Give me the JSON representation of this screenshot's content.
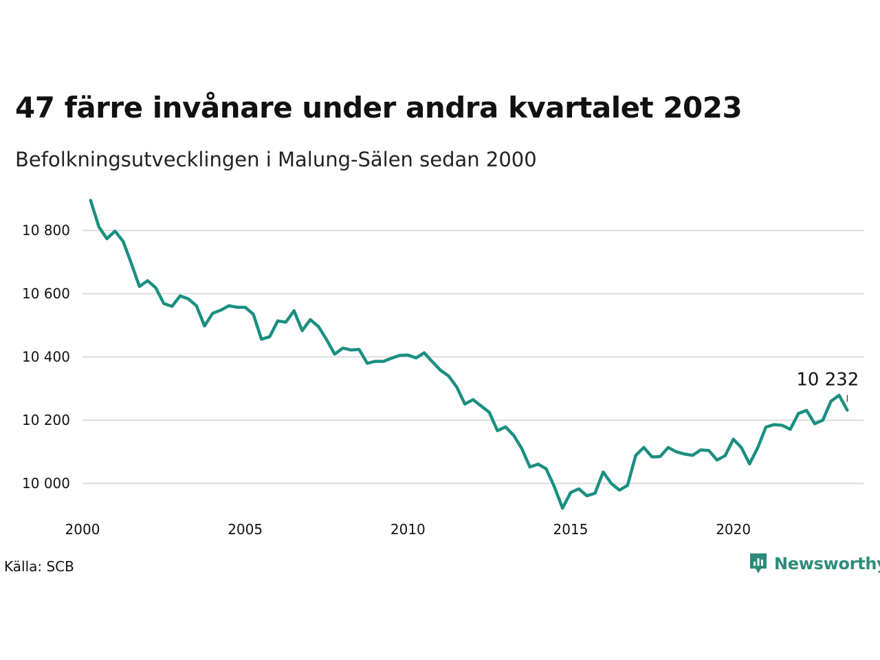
{
  "title": "47 färre invånare under andra kvartalet 2023",
  "subtitle": "Befolkningsutvecklingen i Malung-Sälen sedan 2000",
  "source": "Källa: SCB",
  "brand": {
    "name": "Newsworthy",
    "icon": "newsworthy-logo-icon",
    "color": "#2e8b7a"
  },
  "chart_data": {
    "type": "line",
    "xlabel": "",
    "ylabel": "",
    "ylim": [
      9920,
      10920
    ],
    "xlim": [
      2000.0,
      2024.0
    ],
    "grid": true,
    "line_color": "#1a8f80",
    "yticks": [
      10000,
      10200,
      10400,
      10600,
      10800
    ],
    "ytick_labels": [
      "10 000",
      "10 200",
      "10 400",
      "10 600",
      "10 800"
    ],
    "xticks": [
      2000,
      2005,
      2010,
      2015,
      2020
    ],
    "xtick_labels": [
      "2000",
      "2005",
      "2010",
      "2015",
      "2020"
    ],
    "last_value_label": "10 232",
    "series": [
      {
        "x": [
          2000.25,
          2000.5,
          2000.75,
          2001.0,
          2001.25,
          2001.5,
          2001.75,
          2002.0,
          2002.25,
          2002.5,
          2002.75,
          2003.0,
          2003.25,
          2003.5,
          2003.75,
          2004.0,
          2004.25,
          2004.5,
          2004.75,
          2005.0,
          2005.25,
          2005.5,
          2005.75,
          2006.0,
          2006.25,
          2006.5,
          2006.75,
          2007.0,
          2007.25,
          2007.5,
          2007.75,
          2008.0,
          2008.25,
          2008.5,
          2008.75,
          2009.0,
          2009.25,
          2009.5,
          2009.75,
          2010.0,
          2010.25,
          2010.5,
          2010.75,
          2011.0,
          2011.25,
          2011.5,
          2011.75,
          2012.0,
          2012.25,
          2012.5,
          2012.75,
          2013.0,
          2013.25,
          2013.5,
          2013.75,
          2014.0,
          2014.25,
          2014.5,
          2014.75,
          2015.0,
          2015.25,
          2015.5,
          2015.75,
          2016.0,
          2016.25,
          2016.5,
          2016.75,
          2017.0,
          2017.25,
          2017.5,
          2017.75,
          2018.0,
          2018.25,
          2018.5,
          2018.75,
          2019.0,
          2019.25,
          2019.5,
          2019.75,
          2020.0,
          2020.25,
          2020.5,
          2020.75,
          2021.0,
          2021.25,
          2021.5,
          2021.75,
          2022.0,
          2022.25,
          2022.5,
          2022.75,
          2023.0,
          2023.25,
          2023.5
        ],
        "values": [
          10895,
          10812,
          10774,
          10798,
          10765,
          10696,
          10623,
          10641,
          10619,
          10569,
          10560,
          10593,
          10584,
          10562,
          10498,
          10538,
          10548,
          10562,
          10557,
          10557,
          10535,
          10456,
          10464,
          10514,
          10510,
          10546,
          10483,
          10518,
          10496,
          10455,
          10409,
          10428,
          10422,
          10424,
          10380,
          10386,
          10386,
          10396,
          10405,
          10406,
          10397,
          10413,
          10385,
          10358,
          10340,
          10305,
          10251,
          10265,
          10245,
          10225,
          10167,
          10179,
          10152,
          10110,
          10052,
          10061,
          10046,
          9990,
          9922,
          9971,
          9983,
          9961,
          9969,
          10036,
          10000,
          9979,
          9994,
          10089,
          10114,
          10084,
          10085,
          10114,
          10100,
          10093,
          10089,
          10106,
          10104,
          10074,
          10088,
          10140,
          10113,
          10062,
          10113,
          10178,
          10186,
          10184,
          10171,
          10221,
          10231,
          10189,
          10200,
          10260,
          10279,
          10232
        ]
      }
    ]
  }
}
